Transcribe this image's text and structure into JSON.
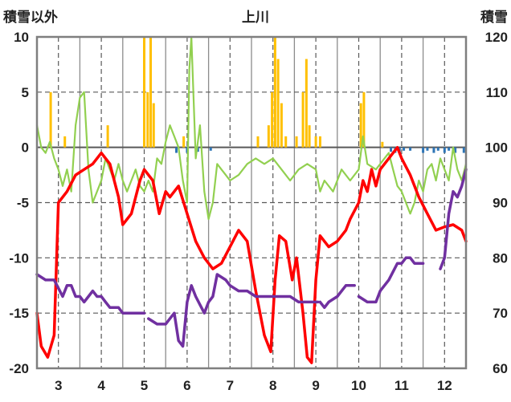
{
  "chart_data": {
    "type": "line",
    "title": "上川",
    "ylabel_left": "積雪以外",
    "ylabel_right": "積雪",
    "left_axis": {
      "min": -20,
      "max": 10,
      "ticks": [
        10,
        5,
        0,
        -5,
        -10,
        -15,
        -20
      ]
    },
    "right_axis": {
      "min": 60,
      "max": 120,
      "ticks": [
        120,
        110,
        100,
        90,
        80,
        70,
        60
      ]
    },
    "x_axis": {
      "min": 2.5,
      "max": 12.5,
      "ticks": [
        3,
        4,
        5,
        6,
        7,
        8,
        9,
        10,
        11,
        12
      ]
    },
    "grid": true,
    "colors": {
      "temperature": "#ff0000",
      "daily_change": "#92d050",
      "snow_depth": "#7030a0",
      "precipitation": "#ffc000",
      "negative_bars": "#2e75b6"
    },
    "series": [
      {
        "key": "temperature",
        "axis": "left",
        "points": [
          [
            2.5,
            -15
          ],
          [
            2.6,
            -18
          ],
          [
            2.75,
            -19
          ],
          [
            2.9,
            -17
          ],
          [
            3.0,
            -5
          ],
          [
            3.2,
            -4
          ],
          [
            3.4,
            -2.5
          ],
          [
            3.6,
            -2
          ],
          [
            3.8,
            -1.5
          ],
          [
            4.0,
            -0.5
          ],
          [
            4.2,
            -1.5
          ],
          [
            4.4,
            -4.5
          ],
          [
            4.5,
            -7
          ],
          [
            4.7,
            -6
          ],
          [
            4.9,
            -3
          ],
          [
            5.0,
            -2
          ],
          [
            5.2,
            -3
          ],
          [
            5.35,
            -6
          ],
          [
            5.5,
            -4
          ],
          [
            5.6,
            -4.5
          ],
          [
            5.8,
            -3.5
          ],
          [
            6.0,
            -6
          ],
          [
            6.2,
            -8.5
          ],
          [
            6.4,
            -10
          ],
          [
            6.6,
            -11
          ],
          [
            6.8,
            -10.5
          ],
          [
            7.0,
            -9
          ],
          [
            7.2,
            -7.5
          ],
          [
            7.4,
            -8.5
          ],
          [
            7.6,
            -13
          ],
          [
            7.8,
            -17
          ],
          [
            7.95,
            -18.5
          ],
          [
            8.05,
            -12
          ],
          [
            8.15,
            -8
          ],
          [
            8.3,
            -8.5
          ],
          [
            8.45,
            -12
          ],
          [
            8.55,
            -10
          ],
          [
            8.7,
            -15
          ],
          [
            8.8,
            -19
          ],
          [
            8.9,
            -19.5
          ],
          [
            9.0,
            -12
          ],
          [
            9.1,
            -8
          ],
          [
            9.3,
            -9
          ],
          [
            9.5,
            -8.5
          ],
          [
            9.7,
            -7.5
          ],
          [
            9.8,
            -6.5
          ],
          [
            10.0,
            -5
          ],
          [
            10.1,
            -3
          ],
          [
            10.2,
            -4
          ],
          [
            10.3,
            -2
          ],
          [
            10.4,
            -3.5
          ],
          [
            10.5,
            -2
          ],
          [
            10.7,
            -1
          ],
          [
            10.9,
            0
          ],
          [
            11.0,
            -1
          ],
          [
            11.2,
            -2.5
          ],
          [
            11.4,
            -4.5
          ],
          [
            11.6,
            -6
          ],
          [
            11.8,
            -7.5
          ],
          [
            12.0,
            -7.2
          ],
          [
            12.2,
            -7
          ],
          [
            12.4,
            -7.5
          ],
          [
            12.5,
            -8.5
          ]
        ]
      },
      {
        "key": "daily_change",
        "axis": "left",
        "points": [
          [
            2.5,
            2
          ],
          [
            2.6,
            0
          ],
          [
            2.7,
            -0.5
          ],
          [
            2.8,
            0.5
          ],
          [
            2.9,
            -1
          ],
          [
            3.0,
            -2
          ],
          [
            3.1,
            -3.5
          ],
          [
            3.2,
            -2
          ],
          [
            3.3,
            -4
          ],
          [
            3.4,
            2
          ],
          [
            3.5,
            4.5
          ],
          [
            3.6,
            5
          ],
          [
            3.7,
            -2
          ],
          [
            3.8,
            -5
          ],
          [
            3.9,
            -4
          ],
          [
            4.0,
            -3
          ],
          [
            4.1,
            -1
          ],
          [
            4.2,
            -2
          ],
          [
            4.3,
            -3
          ],
          [
            4.4,
            -1.5
          ],
          [
            4.5,
            -3
          ],
          [
            4.6,
            -4
          ],
          [
            4.7,
            -3
          ],
          [
            4.8,
            -2
          ],
          [
            4.9,
            -3.5
          ],
          [
            5.0,
            -4
          ],
          [
            5.1,
            -3
          ],
          [
            5.2,
            -4
          ],
          [
            5.3,
            -1
          ],
          [
            5.4,
            -1.5
          ],
          [
            5.5,
            0.5
          ],
          [
            5.6,
            2
          ],
          [
            5.7,
            1
          ],
          [
            5.8,
            0
          ],
          [
            5.9,
            -3
          ],
          [
            6.0,
            -5
          ],
          [
            6.05,
            7
          ],
          [
            6.1,
            10
          ],
          [
            6.2,
            -1
          ],
          [
            6.3,
            2
          ],
          [
            6.4,
            -4
          ],
          [
            6.5,
            -6.5
          ],
          [
            6.6,
            -5
          ],
          [
            6.7,
            -1.5
          ],
          [
            6.8,
            -2
          ],
          [
            6.9,
            -2.5
          ],
          [
            7.0,
            -3
          ],
          [
            7.2,
            -2.5
          ],
          [
            7.4,
            -1.5
          ],
          [
            7.6,
            -1
          ],
          [
            7.8,
            -1.5
          ],
          [
            8.0,
            -1
          ],
          [
            8.2,
            -2
          ],
          [
            8.4,
            -3
          ],
          [
            8.6,
            -2
          ],
          [
            8.8,
            -1.5
          ],
          [
            9.0,
            -2
          ],
          [
            9.1,
            -4
          ],
          [
            9.2,
            -3
          ],
          [
            9.4,
            -4
          ],
          [
            9.6,
            -2
          ],
          [
            9.8,
            -3
          ],
          [
            10.0,
            -2
          ],
          [
            10.1,
            1
          ],
          [
            10.2,
            -1.5
          ],
          [
            10.4,
            -2
          ],
          [
            10.6,
            -1
          ],
          [
            10.7,
            -0.5
          ],
          [
            10.8,
            -2
          ],
          [
            10.9,
            -3.5
          ],
          [
            11.0,
            -4
          ],
          [
            11.1,
            -5
          ],
          [
            11.2,
            -6
          ],
          [
            11.3,
            -5
          ],
          [
            11.4,
            -3
          ],
          [
            11.5,
            -4
          ],
          [
            11.6,
            -2
          ],
          [
            11.7,
            -1.5
          ],
          [
            11.8,
            -3
          ],
          [
            11.9,
            -1
          ],
          [
            12.0,
            -2
          ],
          [
            12.1,
            -3
          ],
          [
            12.2,
            0
          ],
          [
            12.3,
            -2
          ],
          [
            12.4,
            -3
          ],
          [
            12.5,
            -1.5
          ]
        ]
      },
      {
        "key": "snow_depth",
        "axis": "right",
        "points": [
          [
            2.5,
            77
          ],
          [
            2.7,
            76
          ],
          [
            2.9,
            76
          ],
          [
            3.0,
            74.5
          ],
          [
            3.1,
            73
          ],
          [
            3.2,
            75
          ],
          [
            3.3,
            75
          ],
          [
            3.4,
            73
          ],
          [
            3.5,
            73
          ],
          [
            3.6,
            72
          ],
          [
            3.7,
            73
          ],
          [
            3.8,
            74
          ],
          [
            3.9,
            73
          ],
          [
            4.0,
            73
          ],
          [
            4.1,
            72
          ],
          [
            4.2,
            71
          ],
          [
            4.4,
            71
          ],
          [
            4.5,
            70
          ],
          [
            4.9,
            70
          ],
          [
            5.0,
            70
          ]
        ],
        "segments": [
          [
            [
              2.5,
              77
            ],
            [
              2.7,
              76
            ],
            [
              2.9,
              76
            ],
            [
              3.0,
              74.5
            ],
            [
              3.1,
              73
            ],
            [
              3.2,
              75
            ],
            [
              3.3,
              75
            ],
            [
              3.4,
              73
            ],
            [
              3.5,
              73
            ],
            [
              3.6,
              72
            ],
            [
              3.7,
              73
            ],
            [
              3.8,
              74
            ],
            [
              3.9,
              73
            ],
            [
              4.0,
              73
            ],
            [
              4.1,
              72
            ],
            [
              4.2,
              71
            ],
            [
              4.4,
              71
            ],
            [
              4.5,
              70
            ],
            [
              4.9,
              70
            ],
            [
              5.0,
              70
            ]
          ],
          [
            [
              5.1,
              69
            ],
            [
              5.3,
              68
            ],
            [
              5.5,
              68
            ],
            [
              5.6,
              69
            ],
            [
              5.7,
              70
            ],
            [
              5.8,
              65
            ],
            [
              5.9,
              64
            ],
            [
              6.0,
              72
            ],
            [
              6.1,
              75
            ],
            [
              6.2,
              73
            ],
            [
              6.4,
              70
            ],
            [
              6.5,
              72
            ],
            [
              6.6,
              73
            ],
            [
              6.7,
              77
            ],
            [
              6.9,
              76
            ],
            [
              7.0,
              75
            ],
            [
              7.2,
              74
            ],
            [
              7.4,
              74
            ],
            [
              7.6,
              73
            ],
            [
              7.8,
              73
            ],
            [
              8.0,
              73
            ],
            [
              8.2,
              73
            ],
            [
              8.4,
              73
            ],
            [
              8.6,
              72
            ],
            [
              8.8,
              72
            ],
            [
              9.0,
              72
            ],
            [
              9.05,
              72
            ]
          ],
          [
            [
              9.1,
              72
            ],
            [
              9.2,
              71
            ],
            [
              9.3,
              72
            ],
            [
              9.5,
              73
            ],
            [
              9.7,
              75
            ],
            [
              9.9,
              75
            ]
          ],
          [
            [
              10.0,
              73
            ],
            [
              10.2,
              72
            ],
            [
              10.4,
              72
            ],
            [
              10.5,
              74
            ],
            [
              10.7,
              76
            ],
            [
              10.9,
              79
            ],
            [
              11.0,
              79
            ],
            [
              11.1,
              80
            ],
            [
              11.2,
              80
            ],
            [
              11.3,
              79
            ],
            [
              11.5,
              79
            ]
          ],
          [
            [
              11.9,
              78
            ],
            [
              12.0,
              80
            ],
            [
              12.1,
              88
            ],
            [
              12.2,
              92
            ],
            [
              12.3,
              91
            ],
            [
              12.4,
              93
            ],
            [
              12.5,
              96
            ]
          ]
        ]
      },
      {
        "key": "precipitation",
        "axis": "left",
        "bars": [
          [
            2.82,
            5
          ],
          [
            3.15,
            1
          ],
          [
            4.15,
            2
          ],
          [
            5.0,
            10
          ],
          [
            5.08,
            5
          ],
          [
            5.15,
            10
          ],
          [
            5.22,
            4
          ],
          [
            5.92,
            1
          ],
          [
            7.65,
            1
          ],
          [
            7.9,
            2
          ],
          [
            7.98,
            5
          ],
          [
            8.05,
            10
          ],
          [
            8.12,
            8
          ],
          [
            8.2,
            4
          ],
          [
            8.3,
            1
          ],
          [
            8.55,
            1
          ],
          [
            8.7,
            5
          ],
          [
            8.78,
            8
          ],
          [
            8.85,
            2
          ],
          [
            9.0,
            1
          ],
          [
            9.1,
            1
          ],
          [
            10.05,
            4
          ],
          [
            10.12,
            5
          ],
          [
            10.55,
            0.5
          ]
        ]
      },
      {
        "key": "negative_bars",
        "axis": "left",
        "bars": [
          [
            5.75,
            -0.5
          ],
          [
            6.0,
            -0.5
          ],
          [
            6.25,
            -0.4
          ],
          [
            6.55,
            -0.3
          ],
          [
            10.75,
            -0.4
          ],
          [
            10.85,
            -0.5
          ],
          [
            10.95,
            -0.5
          ],
          [
            11.05,
            -0.3
          ],
          [
            11.2,
            -0.3
          ],
          [
            11.5,
            -0.5
          ],
          [
            11.6,
            -0.3
          ],
          [
            11.75,
            -0.5
          ],
          [
            11.85,
            -0.3
          ],
          [
            12.0,
            -0.5
          ],
          [
            12.1,
            -0.3
          ],
          [
            12.25,
            -0.5
          ],
          [
            12.45,
            -0.5
          ]
        ]
      }
    ]
  }
}
